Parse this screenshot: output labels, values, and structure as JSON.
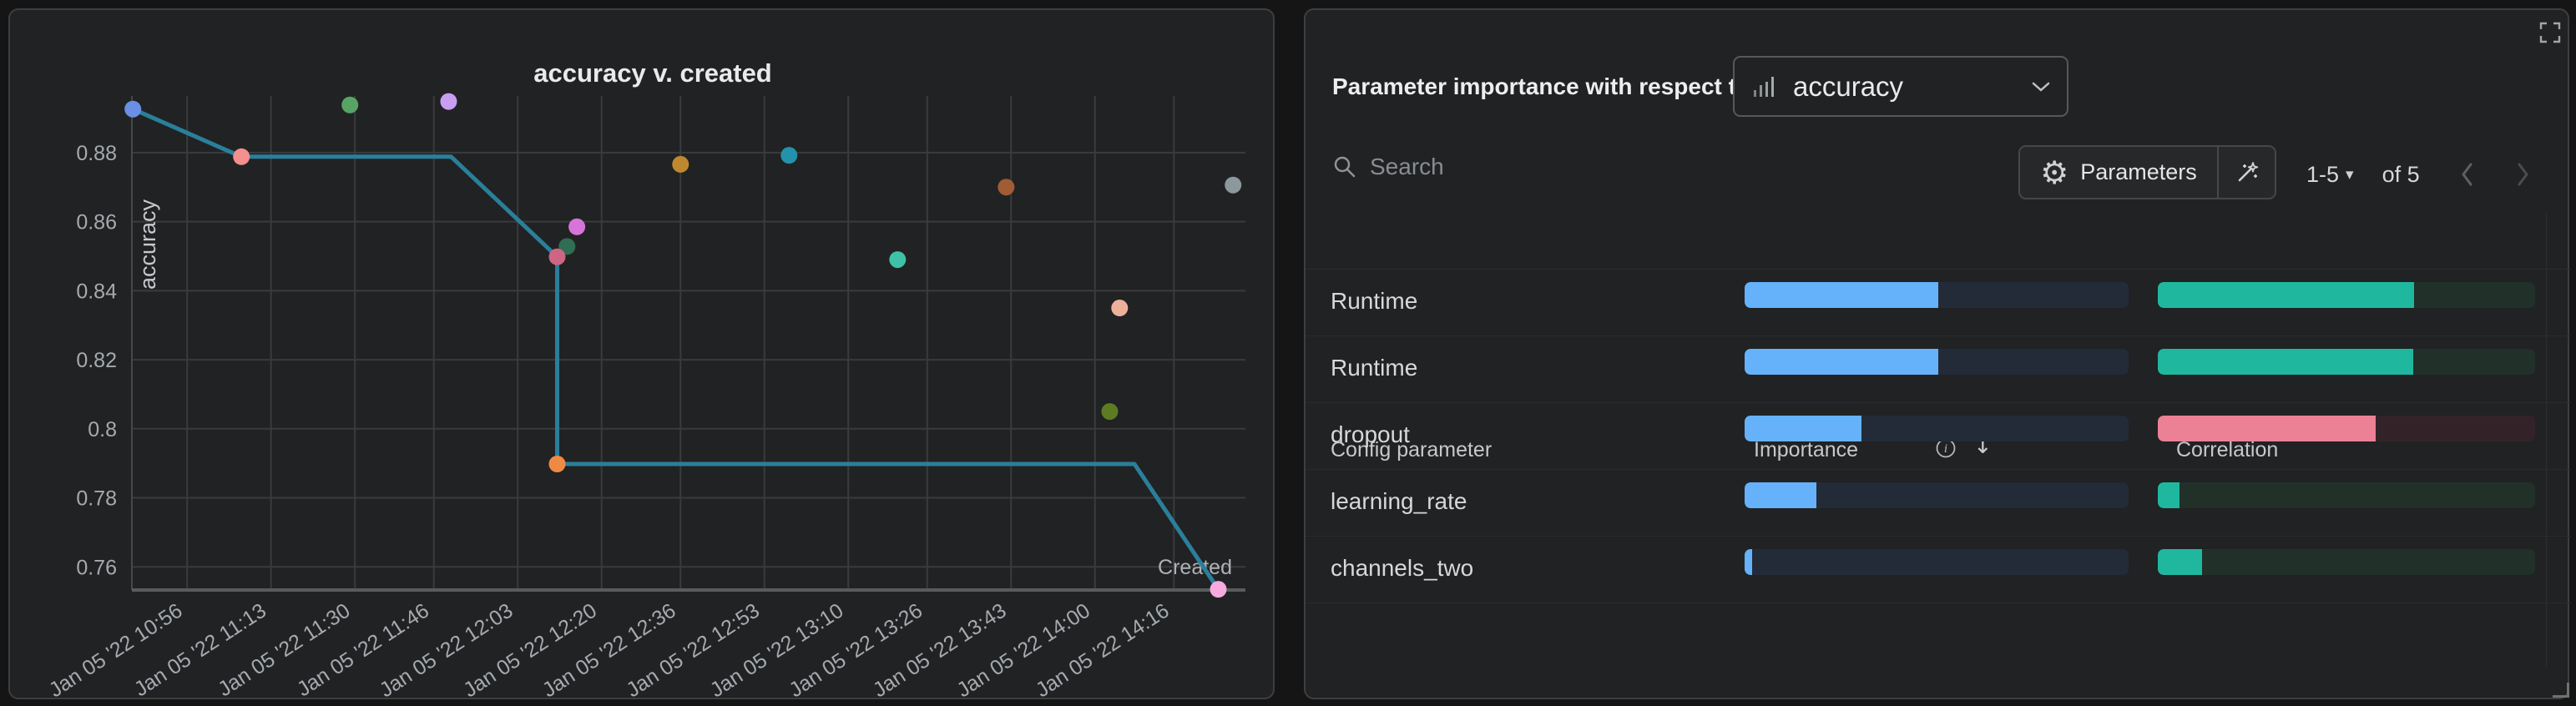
{
  "chart_data": {
    "type": "scatter",
    "title": "accuracy v. created",
    "xlabel": "Created",
    "ylabel": "accuracy",
    "x_axis_note": "minutes after Jan 05 '22 10:40",
    "xlim": [
      4.8,
      230.5
    ],
    "ylim": [
      0.7533,
      0.8964
    ],
    "grid": true,
    "x_ticks": [
      {
        "t": 16,
        "label": "Jan 05 '22 10:56"
      },
      {
        "t": 33,
        "label": "Jan 05 '22 11:13"
      },
      {
        "t": 50,
        "label": "Jan 05 '22 11:30"
      },
      {
        "t": 66,
        "label": "Jan 05 '22 11:46"
      },
      {
        "t": 83,
        "label": "Jan 05 '22 12:03"
      },
      {
        "t": 100,
        "label": "Jan 05 '22 12:20"
      },
      {
        "t": 116,
        "label": "Jan 05 '22 12:36"
      },
      {
        "t": 133,
        "label": "Jan 05 '22 12:53"
      },
      {
        "t": 150,
        "label": "Jan 05 '22 13:10"
      },
      {
        "t": 166,
        "label": "Jan 05 '22 13:26"
      },
      {
        "t": 183,
        "label": "Jan 05 '22 13:43"
      },
      {
        "t": 200,
        "label": "Jan 05 '22 14:00"
      },
      {
        "t": 216,
        "label": "Jan 05 '22 14:16"
      }
    ],
    "y_ticks": [
      {
        "v": 0.88,
        "label": "0.88"
      },
      {
        "v": 0.86,
        "label": "0.86"
      },
      {
        "v": 0.84,
        "label": "0.84"
      },
      {
        "v": 0.82,
        "label": "0.82"
      },
      {
        "v": 0.8,
        "label": "0.8"
      },
      {
        "v": 0.78,
        "label": "0.78"
      },
      {
        "v": 0.76,
        "label": "0.76"
      }
    ],
    "points": [
      {
        "t": 5,
        "v": 0.8926,
        "color": "#6b8fe4"
      },
      {
        "t": 27,
        "v": 0.8788,
        "color": "#f38f8f"
      },
      {
        "t": 49,
        "v": 0.8938,
        "color": "#57a464"
      },
      {
        "t": 69,
        "v": 0.8948,
        "color": "#c79ef2"
      },
      {
        "t": 95,
        "v": 0.8585,
        "color": "#d774da"
      },
      {
        "t": 93,
        "v": 0.8528,
        "color": "#2f6e54"
      },
      {
        "t": 91,
        "v": 0.8498,
        "color": "#cf6584"
      },
      {
        "t": 91,
        "v": 0.7898,
        "color": "#ee8a43"
      },
      {
        "t": 116,
        "v": 0.8766,
        "color": "#c0882e"
      },
      {
        "t": 138,
        "v": 0.8792,
        "color": "#2492ac"
      },
      {
        "t": 160,
        "v": 0.849,
        "color": "#3ec2a7"
      },
      {
        "t": 182,
        "v": 0.87,
        "color": "#a05c35"
      },
      {
        "t": 205,
        "v": 0.835,
        "color": "#eeb09a"
      },
      {
        "t": 203,
        "v": 0.805,
        "color": "#5d7b22"
      },
      {
        "t": 228,
        "v": 0.8706,
        "color": "#8d979e"
      },
      {
        "t": 225,
        "v": 0.7535,
        "color": "#f6aade"
      }
    ],
    "line": {
      "color": "#2a7f9b",
      "width": 5,
      "vertices": [
        {
          "t": 5,
          "v": 0.8926
        },
        {
          "t": 27,
          "v": 0.8788
        },
        {
          "t": 69.5,
          "v": 0.8788
        },
        {
          "t": 91,
          "v": 0.8498
        },
        {
          "t": 91,
          "v": 0.7898
        },
        {
          "t": 208,
          "v": 0.7898
        },
        {
          "t": 225,
          "v": 0.7535
        }
      ]
    }
  },
  "right_panel": {
    "title": "Parameter importance with respect to",
    "metric_select": {
      "value": "accuracy",
      "icon": "metric-bars-icon"
    },
    "search": {
      "placeholder": "Search"
    },
    "parameters_label": "Parameters",
    "pagination": {
      "range": "1-5",
      "caret": "▾",
      "of_total": "of 5"
    },
    "table": {
      "columns": [
        "Config parameter",
        "Importance",
        "Correlation"
      ],
      "importance_fill": "#65b2fb",
      "importance_track": "#232b39",
      "rows": [
        {
          "name": "Runtime",
          "importance": 0.505,
          "correlation": 0.68,
          "corr_fill": "#1fb89f",
          "corr_track": "#213029"
        },
        {
          "name": "Runtime",
          "importance": 0.505,
          "correlation": 0.677,
          "corr_fill": "#1fb89f",
          "corr_track": "#213029"
        },
        {
          "name": "dropout",
          "importance": 0.304,
          "correlation": 0.577,
          "corr_fill": "#ec8095",
          "corr_track": "#332329"
        },
        {
          "name": "learning_rate",
          "importance": 0.186,
          "correlation": 0.058,
          "corr_fill": "#1fb89f",
          "corr_track": "#213029"
        },
        {
          "name": "channels_two",
          "importance": 0.019,
          "correlation": 0.118,
          "corr_fill": "#1fb89f",
          "corr_track": "#213029"
        }
      ]
    }
  }
}
